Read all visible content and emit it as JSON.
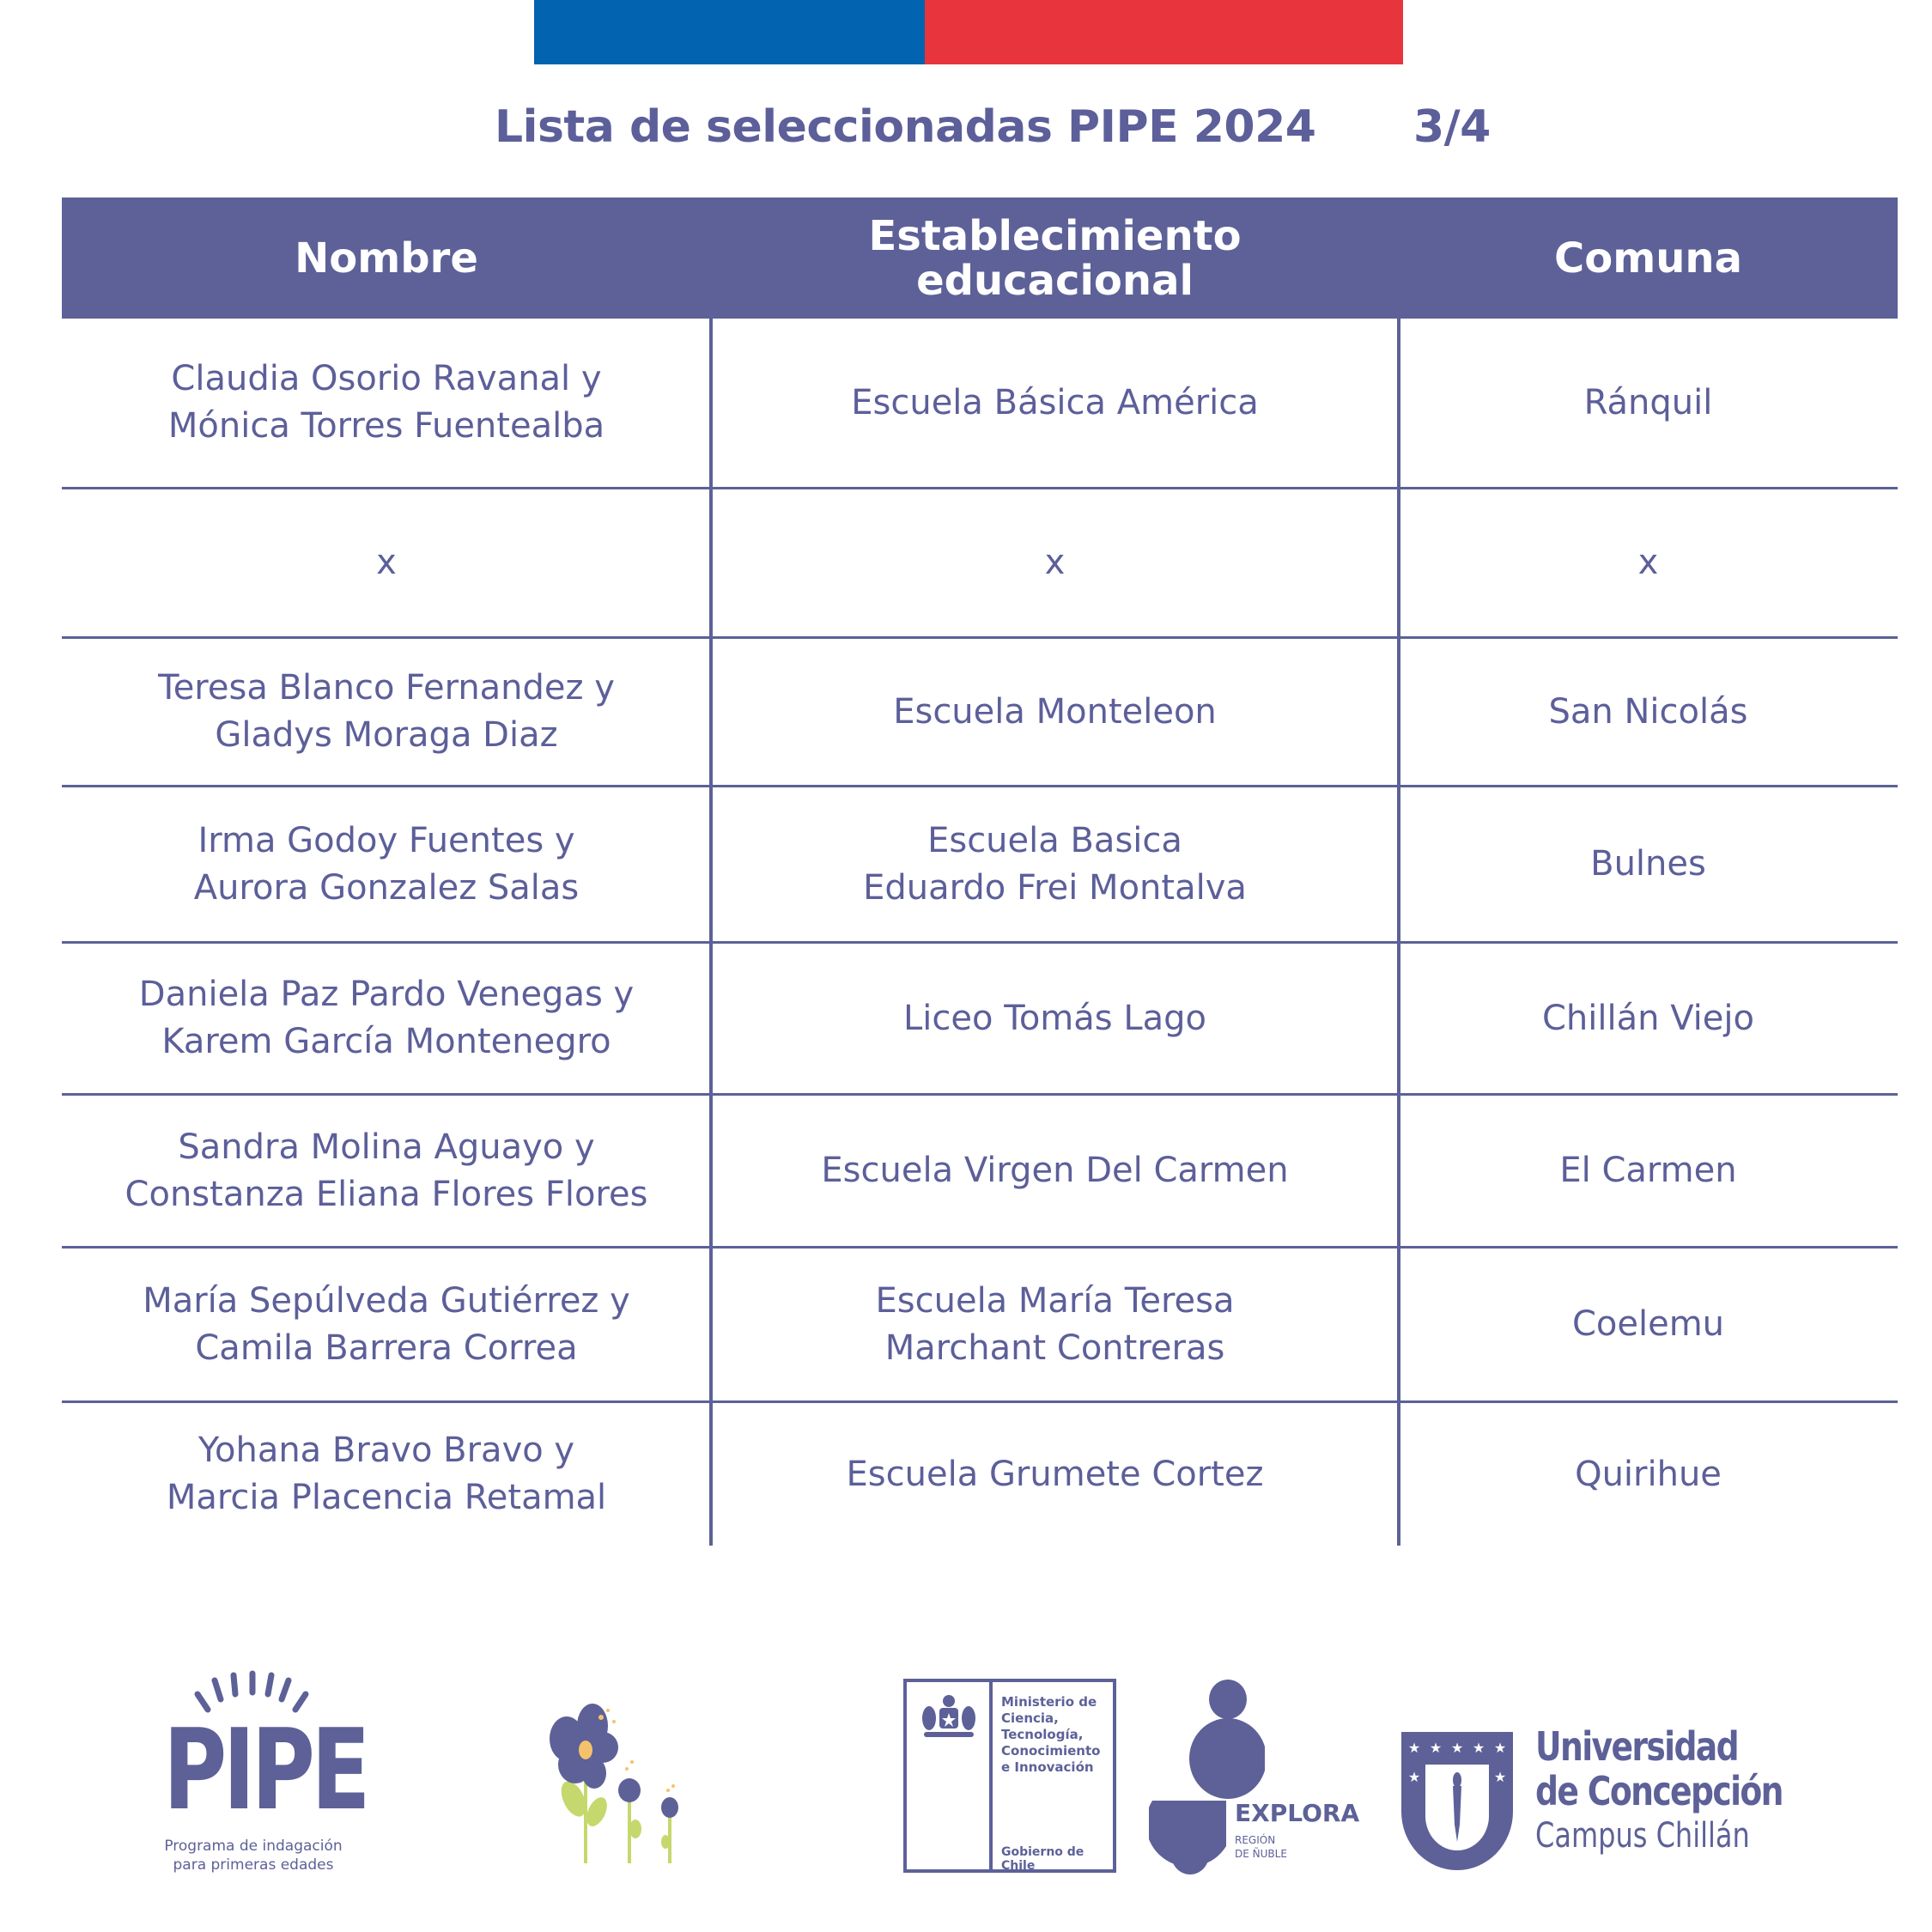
{
  "colors": {
    "blue": "#0263b0",
    "red": "#e8343c",
    "primary": "#5d6198",
    "leaf": "#c5d86d",
    "pollen": "#f5c26b"
  },
  "title": "Lista de seleccionadas PIPE 2024",
  "page_indicator": "3/4",
  "table": {
    "headers": [
      "Nombre",
      "Establecimiento\neducacional",
      "Comuna"
    ],
    "rows": [
      [
        "Claudia Osorio Ravanal y\nMónica Torres Fuentealba",
        "Escuela Básica América",
        "Ránquil"
      ],
      [
        "x",
        "x",
        "x"
      ],
      [
        "Teresa Blanco Fernandez y\nGladys Moraga Diaz",
        "Escuela Monteleon",
        "San Nicolás"
      ],
      [
        "Irma Godoy Fuentes y\nAurora Gonzalez Salas",
        "Escuela Basica\nEduardo Frei Montalva",
        "Bulnes"
      ],
      [
        "Daniela Paz Pardo Venegas y\nKarem García Montenegro",
        "Liceo Tomás Lago",
        "Chillán Viejo"
      ],
      [
        "Sandra Molina Aguayo y\nConstanza Eliana Flores Flores",
        "Escuela Virgen Del Carmen",
        "El Carmen"
      ],
      [
        "María Sepúlveda Gutiérrez y\nCamila Barrera Correa",
        "Escuela María Teresa\nMarchant Contreras",
        "Coelemu"
      ],
      [
        "Yohana Bravo Bravo y\nMarcia Placencia Retamal",
        "Escuela Grumete Cortez",
        "Quirihue"
      ]
    ]
  },
  "footer": {
    "pipe": {
      "logo": "PIPE",
      "tagline_1": "Programa de indagación",
      "tagline_2": "para primeras edades"
    },
    "ministerio": {
      "lines": [
        "Ministerio de",
        "Ciencia,",
        "Tecnología,",
        "Conocimiento",
        "e Innovación"
      ],
      "gobierno": "Gobierno de Chile"
    },
    "explora": {
      "name": "EXPLORA",
      "region_1": "REGIÓN",
      "region_2": "DE ÑUBLE"
    },
    "udec": {
      "line1": "Universidad",
      "line2": "de Concepción",
      "line3": "Campus Chillán"
    }
  }
}
